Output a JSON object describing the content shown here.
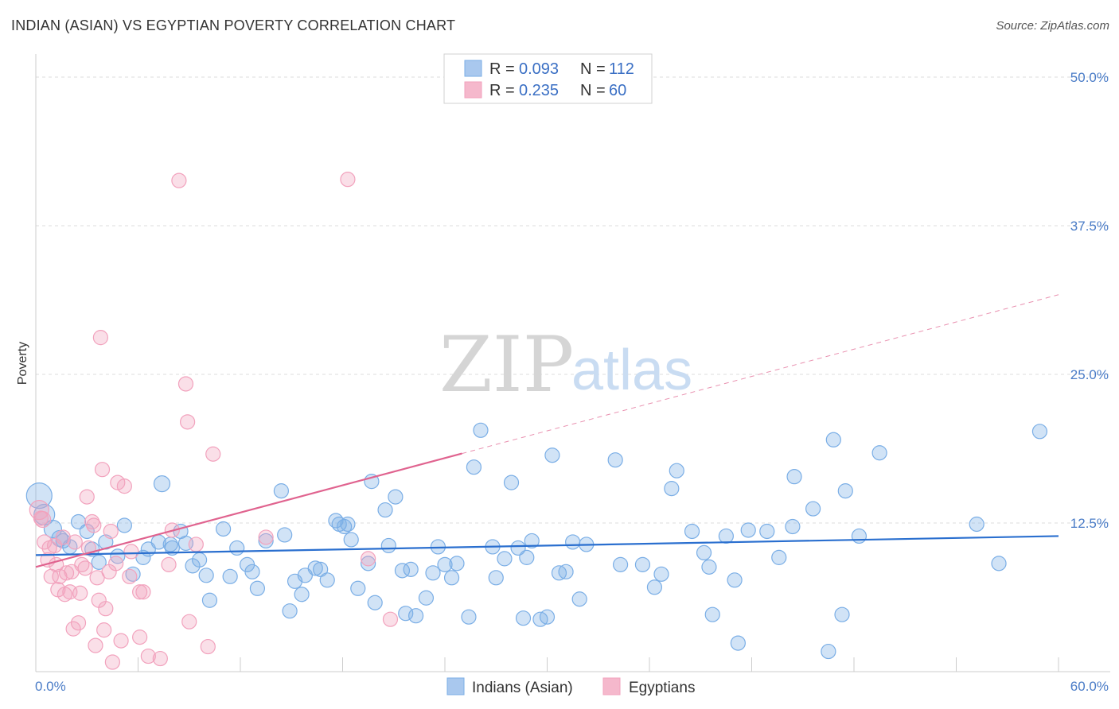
{
  "header": {
    "title": "INDIAN (ASIAN) VS EGYPTIAN POVERTY CORRELATION CHART",
    "source": "Source: ZipAtlas.com"
  },
  "watermark": {
    "zip": "ZIP",
    "atlas": "atlas"
  },
  "legend": {
    "rows": [
      {
        "r_label": "R = ",
        "r_value": "0.093",
        "n_label": "N = ",
        "n_value": "112",
        "color": "#a9c8ee"
      },
      {
        "r_label": "R = ",
        "r_value": "0.235",
        "n_label": "N = ",
        "n_value": "60",
        "color": "#f5b8cc"
      }
    ]
  },
  "chart_data": {
    "type": "scatter",
    "title": "INDIAN (ASIAN) VS EGYPTIAN POVERTY CORRELATION CHART",
    "xlabel": "",
    "ylabel": "Poverty",
    "xlim": [
      0,
      60
    ],
    "ylim": [
      0,
      50
    ],
    "x_tick_labels": [
      "0.0%",
      "60.0%"
    ],
    "y_ticks": [
      12.5,
      25.0,
      37.5,
      50.0
    ],
    "y_tick_labels": [
      "12.5%",
      "25.0%",
      "37.5%",
      "50.0%"
    ],
    "grid": true,
    "legend_position": "top-center",
    "series": [
      {
        "name": "Indians (Asian)",
        "color": "#7aaee6",
        "line_color": "#2a6fcf",
        "trend": {
          "x": [
            0,
            60
          ],
          "y": [
            9.8,
            11.4
          ],
          "dashed_from": null
        },
        "points": [
          [
            0.2,
            14.8,
            16
          ],
          [
            0.5,
            13.2,
            13
          ],
          [
            1.0,
            12.0,
            11
          ],
          [
            1.4,
            11.2,
            10
          ],
          [
            1.6,
            11.0,
            9
          ],
          [
            2.0,
            10.5,
            9
          ],
          [
            2.5,
            12.6,
            9
          ],
          [
            3.0,
            11.8,
            9
          ],
          [
            3.3,
            10.3,
            9
          ],
          [
            3.7,
            9.2,
            9
          ],
          [
            4.1,
            10.9,
            9
          ],
          [
            4.8,
            9.7,
            9
          ],
          [
            5.2,
            12.3,
            9
          ],
          [
            5.7,
            8.2,
            9
          ],
          [
            6.3,
            9.6,
            9
          ],
          [
            6.6,
            10.3,
            9
          ],
          [
            7.2,
            10.9,
            9
          ],
          [
            7.4,
            15.8,
            10
          ],
          [
            7.9,
            10.7,
            9
          ],
          [
            8.0,
            10.4,
            9
          ],
          [
            8.5,
            11.8,
            9
          ],
          [
            8.8,
            10.8,
            9
          ],
          [
            9.2,
            8.9,
            9
          ],
          [
            9.6,
            9.4,
            9
          ],
          [
            10.0,
            8.1,
            9
          ],
          [
            10.2,
            6.0,
            9
          ],
          [
            11.0,
            12.0,
            9
          ],
          [
            11.4,
            8.0,
            9
          ],
          [
            11.8,
            10.4,
            9
          ],
          [
            12.4,
            9.0,
            9
          ],
          [
            12.7,
            8.4,
            9
          ],
          [
            13.0,
            7.0,
            9
          ],
          [
            13.5,
            11.0,
            9
          ],
          [
            14.4,
            15.2,
            9
          ],
          [
            14.6,
            11.5,
            9
          ],
          [
            14.9,
            5.1,
            9
          ],
          [
            15.2,
            7.6,
            9
          ],
          [
            15.6,
            6.5,
            9
          ],
          [
            15.8,
            8.1,
            9
          ],
          [
            16.4,
            8.7,
            9
          ],
          [
            16.7,
            8.6,
            9
          ],
          [
            17.1,
            7.7,
            9
          ],
          [
            17.6,
            12.7,
            9
          ],
          [
            17.8,
            12.4,
            9
          ],
          [
            18.1,
            12.2,
            9
          ],
          [
            18.3,
            12.4,
            9
          ],
          [
            18.5,
            11.1,
            9
          ],
          [
            18.9,
            7.0,
            9
          ],
          [
            19.5,
            9.1,
            9
          ],
          [
            19.7,
            16.0,
            9
          ],
          [
            19.9,
            5.8,
            9
          ],
          [
            20.5,
            13.6,
            9
          ],
          [
            20.7,
            10.6,
            9
          ],
          [
            21.1,
            14.7,
            9
          ],
          [
            21.5,
            8.5,
            9
          ],
          [
            21.7,
            4.9,
            9
          ],
          [
            22.0,
            8.6,
            9
          ],
          [
            22.3,
            4.7,
            9
          ],
          [
            22.9,
            6.2,
            9
          ],
          [
            23.3,
            8.3,
            9
          ],
          [
            23.6,
            10.5,
            9
          ],
          [
            24.0,
            9.0,
            9
          ],
          [
            24.4,
            7.9,
            9
          ],
          [
            24.7,
            9.1,
            9
          ],
          [
            25.4,
            4.6,
            9
          ],
          [
            25.7,
            17.2,
            9
          ],
          [
            26.1,
            20.3,
            9
          ],
          [
            26.8,
            10.5,
            9
          ],
          [
            27.0,
            7.9,
            9
          ],
          [
            27.5,
            9.5,
            9
          ],
          [
            27.9,
            15.9,
            9
          ],
          [
            28.3,
            10.4,
            9
          ],
          [
            28.6,
            4.5,
            9
          ],
          [
            28.8,
            9.6,
            9
          ],
          [
            29.1,
            11.0,
            9
          ],
          [
            29.6,
            4.4,
            9
          ],
          [
            30.0,
            4.6,
            9
          ],
          [
            30.3,
            18.2,
            9
          ],
          [
            30.7,
            8.3,
            9
          ],
          [
            31.1,
            8.4,
            9
          ],
          [
            31.5,
            10.9,
            9
          ],
          [
            31.9,
            6.1,
            9
          ],
          [
            32.3,
            10.7,
            9
          ],
          [
            34.0,
            17.8,
            9
          ],
          [
            34.3,
            9.0,
            9
          ],
          [
            35.6,
            9.0,
            9
          ],
          [
            36.3,
            7.1,
            9
          ],
          [
            36.7,
            8.2,
            9
          ],
          [
            37.3,
            15.4,
            9
          ],
          [
            37.6,
            16.9,
            9
          ],
          [
            38.5,
            11.8,
            9
          ],
          [
            39.2,
            10.0,
            9
          ],
          [
            39.5,
            8.8,
            9
          ],
          [
            39.7,
            4.8,
            9
          ],
          [
            40.5,
            11.4,
            9
          ],
          [
            41.0,
            7.7,
            9
          ],
          [
            41.2,
            2.4,
            9
          ],
          [
            41.8,
            11.9,
            9
          ],
          [
            42.9,
            11.8,
            9
          ],
          [
            43.6,
            9.6,
            9
          ],
          [
            44.4,
            12.2,
            9
          ],
          [
            44.5,
            16.4,
            9
          ],
          [
            45.6,
            13.7,
            9
          ],
          [
            46.5,
            1.7,
            9
          ],
          [
            46.8,
            19.5,
            9
          ],
          [
            47.3,
            4.8,
            9
          ],
          [
            47.5,
            15.2,
            9
          ],
          [
            48.3,
            11.4,
            9
          ],
          [
            49.5,
            18.4,
            9
          ],
          [
            55.2,
            12.4,
            9
          ],
          [
            56.5,
            9.1,
            9
          ],
          [
            58.9,
            20.2,
            9
          ]
        ]
      },
      {
        "name": "Egyptians",
        "color": "#f2a2bd",
        "line_color": "#e0638f",
        "trend": {
          "x": [
            0,
            60
          ],
          "y": [
            8.8,
            31.7
          ],
          "dashed_from": 25
        },
        "points": [
          [
            0.2,
            13.6,
            12
          ],
          [
            0.4,
            12.8,
            10
          ],
          [
            0.5,
            10.9,
            9
          ],
          [
            0.7,
            9.4,
            9
          ],
          [
            0.9,
            8.0,
            9
          ],
          [
            1.1,
            10.6,
            9
          ],
          [
            1.2,
            9.0,
            9
          ],
          [
            1.4,
            8.0,
            9
          ],
          [
            1.6,
            11.3,
            9
          ],
          [
            1.7,
            6.5,
            9
          ],
          [
            1.8,
            8.3,
            9
          ],
          [
            2.0,
            6.7,
            9
          ],
          [
            2.1,
            8.4,
            9
          ],
          [
            2.3,
            10.9,
            9
          ],
          [
            2.5,
            4.1,
            9
          ],
          [
            2.6,
            6.6,
            9
          ],
          [
            2.7,
            9.0,
            9
          ],
          [
            2.9,
            8.7,
            9
          ],
          [
            3.0,
            14.7,
            9
          ],
          [
            3.1,
            10.4,
            9
          ],
          [
            3.3,
            12.6,
            9
          ],
          [
            3.4,
            12.3,
            9
          ],
          [
            3.5,
            2.2,
            9
          ],
          [
            3.7,
            6.0,
            9
          ],
          [
            3.8,
            28.1,
            9
          ],
          [
            3.9,
            17.0,
            9
          ],
          [
            4.0,
            3.5,
            9
          ],
          [
            4.1,
            5.3,
            9
          ],
          [
            4.3,
            8.4,
            9
          ],
          [
            4.5,
            0.8,
            9
          ],
          [
            4.7,
            9.1,
            9
          ],
          [
            4.8,
            15.9,
            9
          ],
          [
            5.0,
            2.6,
            9
          ],
          [
            5.2,
            15.6,
            9
          ],
          [
            5.6,
            10.1,
            9
          ],
          [
            6.1,
            2.9,
            9
          ],
          [
            6.1,
            6.7,
            9
          ],
          [
            6.3,
            6.7,
            9
          ],
          [
            6.6,
            1.3,
            9
          ],
          [
            7.3,
            1.1,
            9
          ],
          [
            8.0,
            11.9,
            9
          ],
          [
            8.4,
            41.3,
            9
          ],
          [
            8.8,
            24.2,
            9
          ],
          [
            8.9,
            21.0,
            9
          ],
          [
            9.0,
            4.2,
            9
          ],
          [
            10.1,
            2.1,
            9
          ],
          [
            10.4,
            18.3,
            9
          ],
          [
            13.5,
            11.3,
            9
          ],
          [
            18.3,
            41.4,
            9
          ],
          [
            19.5,
            9.5,
            9
          ],
          [
            20.8,
            4.4,
            9
          ],
          [
            0.3,
            12.9,
            9
          ],
          [
            0.8,
            10.4,
            9
          ],
          [
            1.3,
            6.9,
            9
          ],
          [
            2.2,
            3.6,
            9
          ],
          [
            3.6,
            7.9,
            9
          ],
          [
            4.4,
            11.8,
            9
          ],
          [
            5.5,
            8.0,
            9
          ],
          [
            7.8,
            9.0,
            9
          ],
          [
            9.4,
            10.7,
            9
          ]
        ]
      }
    ]
  },
  "bottom_legend": {
    "items": [
      {
        "label": "Indians (Asian)",
        "color": "#a9c8ee"
      },
      {
        "label": "Egyptians",
        "color": "#f5b8cc"
      }
    ]
  }
}
